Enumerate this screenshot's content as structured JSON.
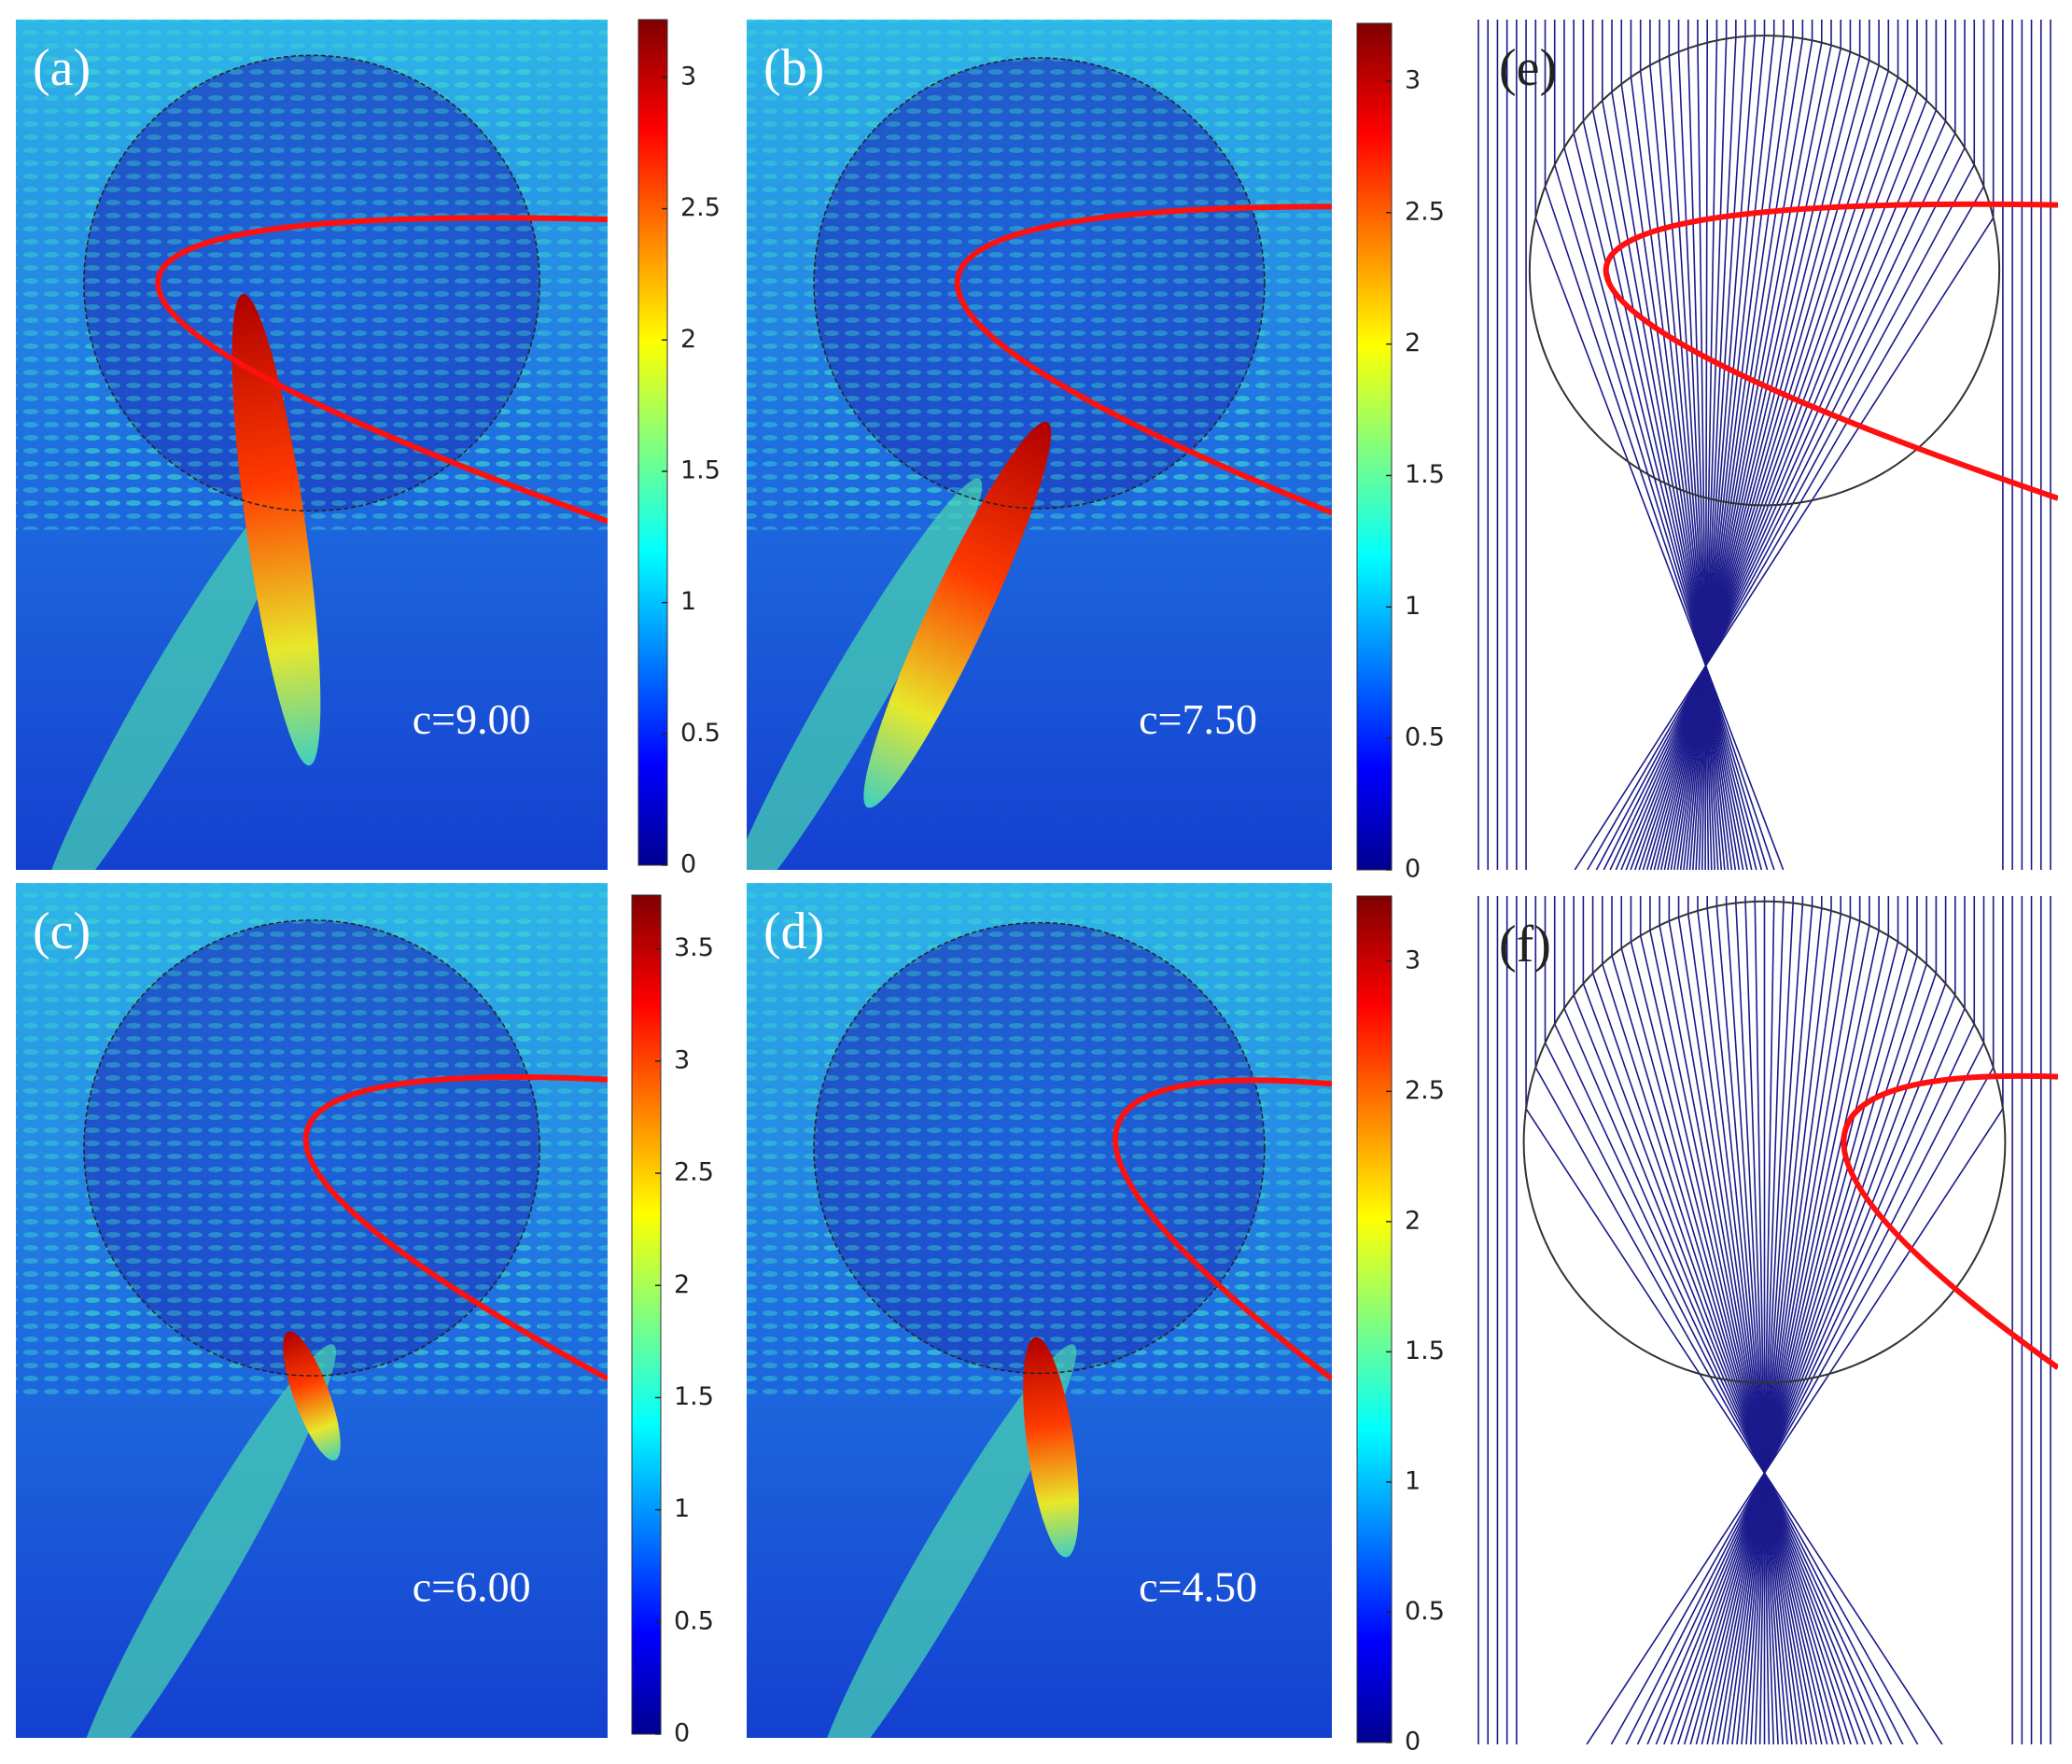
{
  "panels": [
    {
      "label": "(a)",
      "caption": "c=9.00",
      "colorbar": {
        "lim": [
          0,
          3.22
        ],
        "ticks": [
          0,
          0.5,
          1,
          1.5,
          2,
          2.5,
          3
        ]
      }
    },
    {
      "label": "(b)",
      "caption": "c=7.50",
      "colorbar": {
        "lim": [
          0,
          3.22
        ],
        "ticks": [
          0,
          0.5,
          1,
          1.5,
          2,
          2.5,
          3
        ]
      }
    },
    {
      "label": "(c)",
      "caption": "c=6.00",
      "colorbar": {
        "lim": [
          0,
          3.74
        ],
        "ticks": [
          0,
          0.5,
          1,
          1.5,
          2,
          2.5,
          3,
          3.5
        ]
      }
    },
    {
      "label": "(d)",
      "caption": "c=4.50",
      "colorbar": {
        "lim": [
          0,
          3.25
        ],
        "ticks": [
          0,
          0.5,
          1,
          1.5,
          2,
          2.5,
          3
        ]
      }
    }
  ],
  "ray_panels": [
    {
      "label": "(e)"
    },
    {
      "label": "(f)"
    }
  ]
}
